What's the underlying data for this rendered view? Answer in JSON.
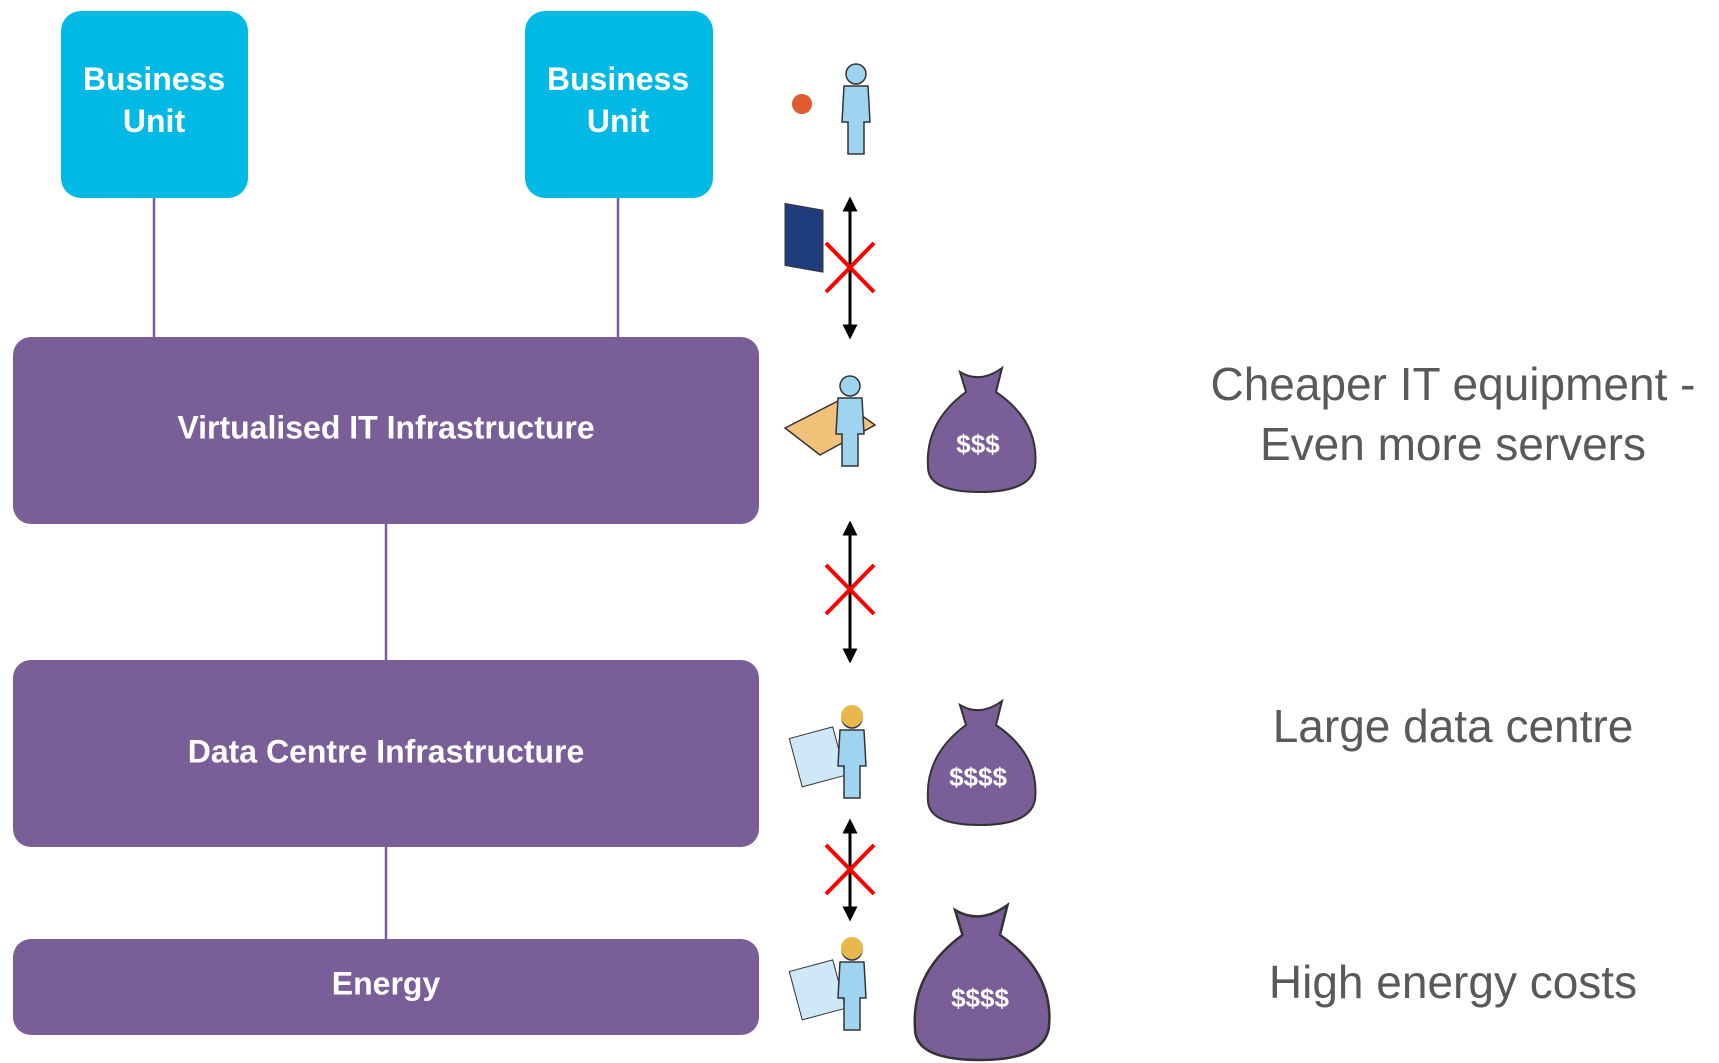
{
  "units": [
    "Business Unit",
    "Business Unit"
  ],
  "layers": [
    "Virtualised IT Infrastructure",
    "Data Centre Infrastructure",
    "Energy"
  ],
  "costs": [
    "$$$",
    "$$$$",
    "$$$$"
  ],
  "notes": [
    [
      "Cheaper IT equipment -",
      "Even more servers"
    ],
    [
      "Large data centre"
    ],
    [
      "High energy costs"
    ]
  ]
}
